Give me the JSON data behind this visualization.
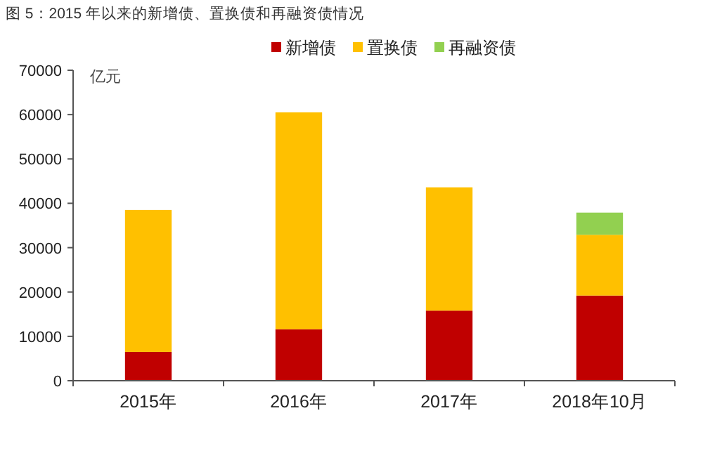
{
  "chart_data": {
    "type": "bar",
    "title": "图 5：2015 年以来的新增债、置换债和再融资债情况",
    "ylabel": "亿元",
    "stacked": true,
    "legend": "top",
    "grid": false,
    "categories": [
      "2015年",
      "2016年",
      "2017年",
      "2018年10月"
    ],
    "series": [
      {
        "name": "新增债",
        "color": "#c00000",
        "values": [
          6500,
          11600,
          15800,
          19200
        ]
      },
      {
        "name": "置换债",
        "color": "#ffc000",
        "values": [
          32000,
          48900,
          27800,
          13700
        ]
      },
      {
        "name": "再融资债",
        "color": "#92d050",
        "values": [
          null,
          null,
          null,
          5000
        ]
      }
    ],
    "ylim": [
      0,
      70000
    ],
    "yticks": [
      0,
      10000,
      20000,
      30000,
      40000,
      50000,
      60000,
      70000
    ]
  }
}
